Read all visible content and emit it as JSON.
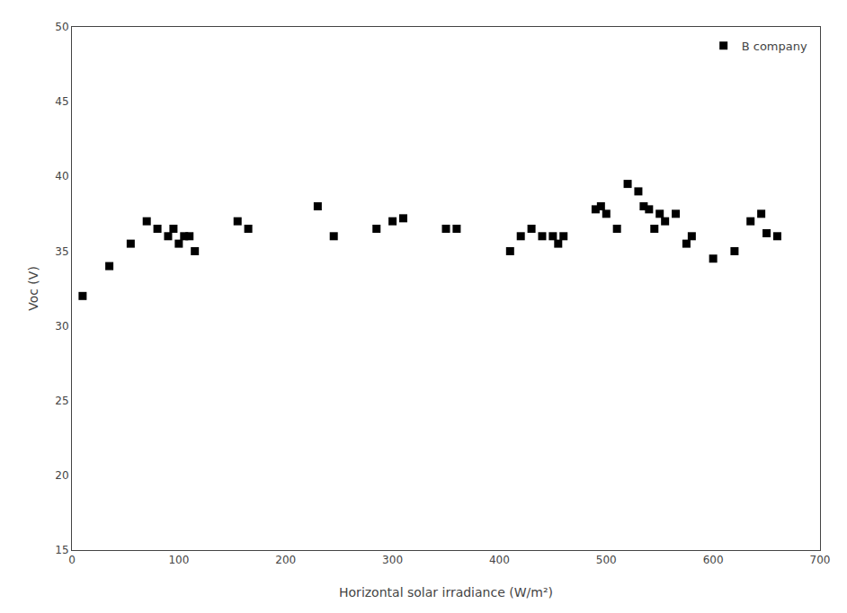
{
  "chart_data": {
    "type": "scatter",
    "x": [
      10,
      35,
      55,
      70,
      80,
      90,
      95,
      100,
      105,
      110,
      115,
      155,
      165,
      230,
      245,
      285,
      300,
      310,
      350,
      360,
      410,
      420,
      430,
      440,
      450,
      455,
      460,
      490,
      495,
      500,
      510,
      520,
      530,
      535,
      540,
      545,
      550,
      555,
      565,
      575,
      580,
      600,
      620,
      635,
      645,
      650,
      660
    ],
    "series": [
      {
        "name": "B company",
        "color": "black",
        "marker": "square",
        "values": [
          32,
          34,
          35.5,
          37,
          36.5,
          36,
          36.5,
          35.5,
          36,
          36,
          35,
          37,
          36.5,
          38,
          36,
          36.5,
          37,
          37.2,
          36.5,
          36.5,
          35,
          36,
          36.5,
          36,
          36,
          35.5,
          36,
          37.8,
          38,
          37.5,
          36.5,
          39.5,
          39,
          38,
          37.8,
          36.5,
          37.5,
          37,
          37.5,
          35.5,
          36,
          34.5,
          35,
          37,
          37.5,
          36.2,
          36
        ]
      }
    ],
    "xlabel": "Horizontal solar irradiance (W/m²)",
    "ylabel": "Voc (V)",
    "xlim": [
      0,
      700
    ],
    "ylim": [
      15,
      50
    ],
    "xticks": [
      0,
      100,
      200,
      300,
      400,
      500,
      600,
      700
    ],
    "yticks": [
      15,
      20,
      25,
      30,
      35,
      40,
      45,
      50
    ],
    "grid": false,
    "legend": "upper right"
  }
}
